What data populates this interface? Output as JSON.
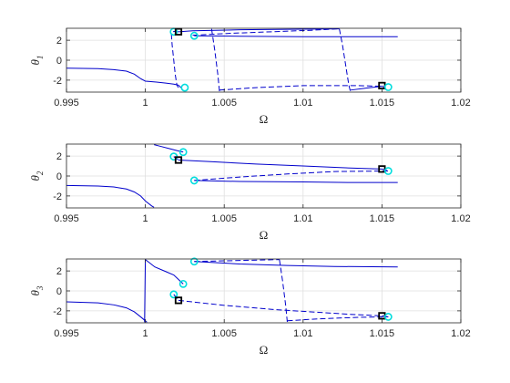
{
  "chart_data": [
    {
      "type": "line",
      "panel": 1,
      "xlabel": "Ω",
      "ylabel": {
        "symbol": "θ",
        "sub": "1"
      },
      "xlim": [
        0.995,
        1.02
      ],
      "ylim": [
        -3.2,
        3.2
      ],
      "xticks": [
        0.995,
        1,
        1.005,
        1.01,
        1.015,
        1.02
      ],
      "xtick_labels": [
        "0.995",
        "1",
        "1.005",
        "1.01",
        "1.015",
        "1.02"
      ],
      "yticks": [
        -2,
        0,
        2
      ],
      "ytick_labels": [
        "-2",
        "0",
        "2"
      ],
      "grid": true,
      "series": [
        {
          "style": "solid",
          "color": "#0000cc",
          "points": [
            [
              0.995,
              -0.8
            ],
            [
              0.997,
              -0.85
            ],
            [
              0.998,
              -0.95
            ],
            [
              0.9988,
              -1.1
            ],
            [
              0.9993,
              -1.4
            ],
            [
              0.9997,
              -1.85
            ],
            [
              1.0,
              -2.1
            ],
            [
              1.0007,
              -2.2
            ],
            [
              1.0013,
              -2.3
            ],
            [
              1.0018,
              -2.4
            ],
            [
              1.0021,
              -2.5
            ]
          ]
        },
        {
          "style": "dashed",
          "color": "#0000cc",
          "points": [
            [
              1.0021,
              -2.5
            ],
            [
              1.00225,
              -2.75
            ]
          ]
        },
        {
          "style": "dashed",
          "color": "#0000cc",
          "points": [
            [
              1.0021,
              2.85
            ],
            [
              1.0019,
              2.9
            ],
            [
              1.00175,
              2.85
            ],
            [
              1.00165,
              2.6
            ],
            [
              1.0017,
              1.5
            ],
            [
              1.0018,
              0.0
            ],
            [
              1.0019,
              -1.5
            ],
            [
              1.002,
              -2.5
            ],
            [
              1.0021,
              -2.75
            ]
          ]
        },
        {
          "style": "solid",
          "color": "#0000cc",
          "points": [
            [
              1.0021,
              2.85
            ],
            [
              1.003,
              2.95
            ],
            [
              1.006,
              3.05
            ],
            [
              1.009,
              3.1
            ],
            [
              1.0123,
              3.14
            ]
          ]
        },
        {
          "style": "dashed",
          "color": "#0000cc",
          "points": [
            [
              1.0123,
              3.14
            ],
            [
              1.0125,
              1.5
            ],
            [
              1.0127,
              -0.5
            ],
            [
              1.0129,
              -2.5
            ],
            [
              1.013,
              -3.14
            ]
          ]
        },
        {
          "style": "solid",
          "color": "#0000cc",
          "points": [
            [
              1.0031,
              2.45
            ],
            [
              1.006,
              2.4
            ],
            [
              1.01,
              2.35
            ],
            [
              1.0135,
              2.35
            ],
            [
              1.016,
              2.35
            ]
          ]
        },
        {
          "style": "dashed",
          "color": "#0000cc",
          "points": [
            [
              1.003,
              2.5
            ],
            [
              1.0055,
              2.7
            ],
            [
              1.008,
              2.85
            ],
            [
              1.0105,
              3.0
            ],
            [
              1.0122,
              3.14
            ]
          ]
        },
        {
          "style": "dashed",
          "color": "#0000cc",
          "points": [
            [
              1.0042,
              3.14
            ],
            [
              1.0044,
              1.0
            ],
            [
              1.0046,
              -1.5
            ],
            [
              1.0047,
              -3.14
            ]
          ]
        },
        {
          "style": "dashed",
          "color": "#0000cc",
          "points": [
            [
              1.0047,
              -3.0
            ],
            [
              1.007,
              -2.75
            ],
            [
              1.01,
              -2.55
            ],
            [
              1.0135,
              -2.55
            ],
            [
              1.015,
              -2.62
            ]
          ]
        },
        {
          "style": "solid",
          "color": "#0000cc",
          "points": [
            [
              1.013,
              -3.0
            ],
            [
              1.014,
              -2.8
            ],
            [
              1.015,
              -2.62
            ]
          ]
        },
        {
          "style": "solid",
          "color": "#0000cc",
          "points": [
            [
              1.015,
              -2.62
            ],
            [
              1.0152,
              -2.72
            ]
          ]
        }
      ],
      "markers": [
        {
          "type": "circle",
          "color": "#00dddd",
          "x": 1.0018,
          "y": 2.85
        },
        {
          "type": "square",
          "color": "#000000",
          "x": 1.0021,
          "y": 2.85
        },
        {
          "type": "circle",
          "color": "#00dddd",
          "x": 1.0025,
          "y": -2.75
        },
        {
          "type": "circle",
          "color": "#00dddd",
          "x": 1.0031,
          "y": 2.45
        },
        {
          "type": "square",
          "color": "#000000",
          "x": 1.015,
          "y": -2.55
        },
        {
          "type": "circle",
          "color": "#00dddd",
          "x": 1.0154,
          "y": -2.7
        }
      ]
    },
    {
      "type": "line",
      "panel": 2,
      "xlabel": "Ω",
      "ylabel": {
        "symbol": "θ",
        "sub": "2"
      },
      "xlim": [
        0.995,
        1.02
      ],
      "ylim": [
        -3.2,
        3.2
      ],
      "xticks": [
        0.995,
        1,
        1.005,
        1.01,
        1.015,
        1.02
      ],
      "xtick_labels": [
        "0.995",
        "1",
        "1.005",
        "1.01",
        "1.015",
        "1.02"
      ],
      "yticks": [
        -2,
        0,
        2
      ],
      "ytick_labels": [
        "-2",
        "0",
        "2"
      ],
      "grid": true,
      "series": [
        {
          "style": "solid",
          "color": "#0000cc",
          "points": [
            [
              0.995,
              -0.95
            ],
            [
              0.997,
              -1.0
            ],
            [
              0.998,
              -1.1
            ],
            [
              0.9988,
              -1.3
            ],
            [
              0.9993,
              -1.6
            ],
            [
              0.9997,
              -2.0
            ],
            [
              1.0,
              -2.5
            ],
            [
              1.0004,
              -3.0
            ],
            [
              1.00055,
              -3.14
            ]
          ]
        },
        {
          "style": "solid",
          "color": "#0000cc",
          "points": [
            [
              1.00055,
              3.14
            ],
            [
              1.0009,
              3.0
            ],
            [
              1.0015,
              2.75
            ],
            [
              1.002,
              2.55
            ],
            [
              1.0024,
              2.4
            ]
          ]
        },
        {
          "style": "dashed",
          "color": "#0000cc",
          "points": [
            [
              1.0018,
              1.95
            ],
            [
              1.0021,
              1.6
            ]
          ]
        },
        {
          "style": "solid",
          "color": "#0000cc",
          "points": [
            [
              1.0021,
              1.6
            ],
            [
              1.004,
              1.45
            ],
            [
              1.007,
              1.2
            ],
            [
              1.01,
              1.0
            ],
            [
              1.013,
              0.8
            ],
            [
              1.015,
              0.7
            ]
          ]
        },
        {
          "style": "dashed",
          "color": "#0000cc",
          "points": [
            [
              1.015,
              0.7
            ],
            [
              1.0154,
              0.5
            ]
          ]
        },
        {
          "style": "dashed",
          "color": "#0000cc",
          "points": [
            [
              1.0031,
              -0.45
            ],
            [
              1.006,
              -0.1
            ],
            [
              1.009,
              0.2
            ],
            [
              1.012,
              0.45
            ],
            [
              1.0154,
              0.5
            ]
          ]
        },
        {
          "style": "solid",
          "color": "#0000cc",
          "points": [
            [
              1.0031,
              -0.45
            ],
            [
              1.006,
              -0.55
            ],
            [
              1.01,
              -0.6
            ],
            [
              1.013,
              -0.65
            ],
            [
              1.016,
              -0.65
            ]
          ]
        }
      ],
      "markers": [
        {
          "type": "circle",
          "color": "#00dddd",
          "x": 1.0018,
          "y": 1.95
        },
        {
          "type": "square",
          "color": "#000000",
          "x": 1.0021,
          "y": 1.6
        },
        {
          "type": "circle",
          "color": "#00dddd",
          "x": 1.0024,
          "y": 2.4
        },
        {
          "type": "circle",
          "color": "#00dddd",
          "x": 1.0031,
          "y": -0.45
        },
        {
          "type": "square",
          "color": "#000000",
          "x": 1.015,
          "y": 0.7
        },
        {
          "type": "circle",
          "color": "#00dddd",
          "x": 1.0154,
          "y": 0.5
        }
      ]
    },
    {
      "type": "line",
      "panel": 3,
      "xlabel": "Ω",
      "ylabel": {
        "symbol": "θ",
        "sub": "3"
      },
      "xlim": [
        0.995,
        1.02
      ],
      "ylim": [
        -3.2,
        3.2
      ],
      "xticks": [
        0.995,
        1,
        1.005,
        1.01,
        1.015,
        1.02
      ],
      "xtick_labels": [
        "0.995",
        "1",
        "1.005",
        "1.01",
        "1.015",
        "1.02"
      ],
      "yticks": [
        -2,
        0,
        2
      ],
      "ytick_labels": [
        "-2",
        "0",
        "2"
      ],
      "grid": true,
      "series": [
        {
          "style": "solid",
          "color": "#0000cc",
          "points": [
            [
              0.995,
              -1.1
            ],
            [
              0.997,
              -1.2
            ],
            [
              0.998,
              -1.4
            ],
            [
              0.9988,
              -1.7
            ],
            [
              0.9993,
              -2.1
            ],
            [
              0.9997,
              -2.6
            ],
            [
              1.0,
              -3.0
            ],
            [
              1.0001,
              -3.14
            ]
          ]
        },
        {
          "style": "solid",
          "color": "#0000cc",
          "points": [
            [
              0.99995,
              -3.14
            ],
            [
              1.0,
              3.14
            ]
          ]
        },
        {
          "style": "solid",
          "color": "#0000cc",
          "points": [
            [
              1.0,
              3.14
            ],
            [
              1.0006,
              2.4
            ],
            [
              1.0012,
              2.0
            ],
            [
              1.0018,
              1.6
            ],
            [
              1.0024,
              0.7
            ]
          ]
        },
        {
          "style": "dashed",
          "color": "#0000cc",
          "points": [
            [
              1.0018,
              -0.35
            ],
            [
              1.0021,
              -0.95
            ]
          ]
        },
        {
          "style": "dashed",
          "color": "#0000cc",
          "points": [
            [
              1.0021,
              -0.95
            ],
            [
              1.005,
              -1.45
            ],
            [
              1.008,
              -1.85
            ],
            [
              1.011,
              -2.15
            ],
            [
              1.013,
              -2.35
            ],
            [
              1.015,
              -2.5
            ]
          ]
        },
        {
          "style": "solid",
          "color": "#0000cc",
          "points": [
            [
              1.015,
              -2.5
            ],
            [
              1.0154,
              -2.6
            ]
          ]
        },
        {
          "style": "solid",
          "color": "#0000cc",
          "points": [
            [
              1.0031,
              2.95
            ],
            [
              1.006,
              2.7
            ],
            [
              1.009,
              2.55
            ],
            [
              1.012,
              2.45
            ],
            [
              1.016,
              2.4
            ]
          ]
        },
        {
          "style": "dashed",
          "color": "#0000cc",
          "points": [
            [
              1.0031,
              2.95
            ],
            [
              1.006,
              3.05
            ],
            [
              1.0085,
              3.14
            ]
          ]
        },
        {
          "style": "dashed",
          "color": "#0000cc",
          "points": [
            [
              1.0085,
              3.14
            ],
            [
              1.0087,
              1.0
            ],
            [
              1.0089,
              -1.5
            ],
            [
              1.009,
              -3.14
            ]
          ]
        },
        {
          "style": "dashed",
          "color": "#0000cc",
          "points": [
            [
              1.009,
              -3.0
            ],
            [
              1.011,
              -2.8
            ],
            [
              1.0135,
              -2.65
            ],
            [
              1.0154,
              -2.6
            ]
          ]
        }
      ],
      "markers": [
        {
          "type": "circle",
          "color": "#00dddd",
          "x": 1.0018,
          "y": -0.35
        },
        {
          "type": "square",
          "color": "#000000",
          "x": 1.0021,
          "y": -0.95
        },
        {
          "type": "circle",
          "color": "#00dddd",
          "x": 1.0024,
          "y": 0.7
        },
        {
          "type": "circle",
          "color": "#00dddd",
          "x": 1.0031,
          "y": 2.95
        },
        {
          "type": "square",
          "color": "#000000",
          "x": 1.015,
          "y": -2.5
        },
        {
          "type": "circle",
          "color": "#00dddd",
          "x": 1.0154,
          "y": -2.6
        }
      ]
    }
  ]
}
